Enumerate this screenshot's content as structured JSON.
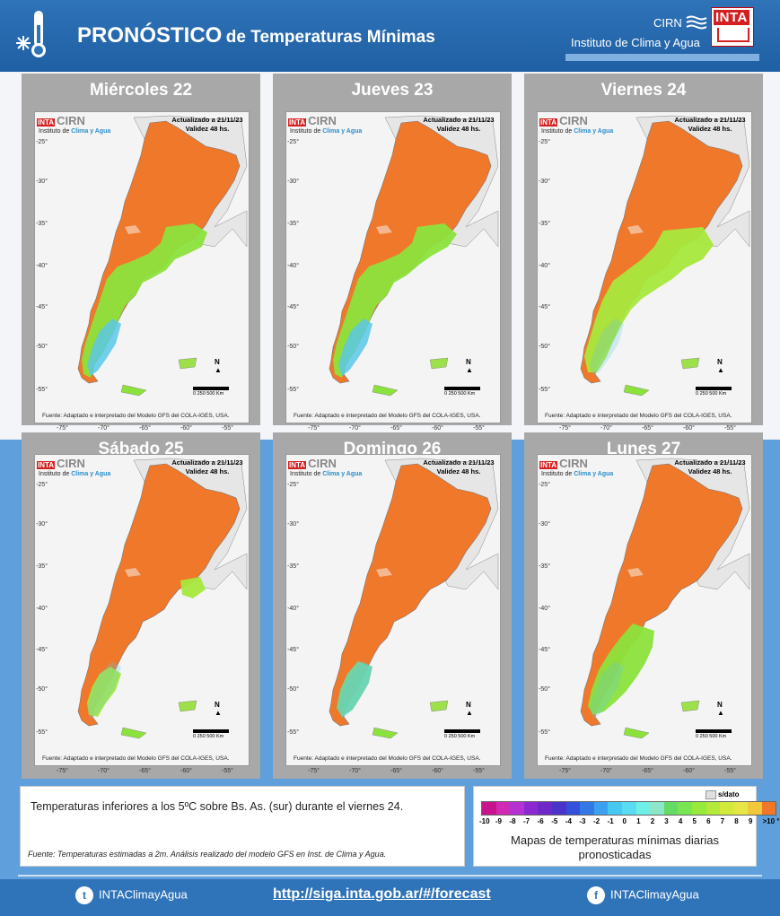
{
  "header": {
    "title_bold": "PRONÓSTICO",
    "title_rest": "de Temperaturas  Mínimas",
    "cirn": "CIRN",
    "institute": "Instituto de Clima y Agua",
    "logo_text": "INTA",
    "icon": "thermometer-snowflake-icon"
  },
  "map_common": {
    "logo_inta": "INTA",
    "logo_cirn": "CIRN",
    "inst_pre": "Instituto de",
    "inst_hl": "Clima y Agua",
    "updated": "Actualizado a 21/11/23",
    "validity": "Validez 48 hs.",
    "source": "Fuente: Adaptado e interpretado del Modelo GFS del COLA-IGES, USA.",
    "north": "N",
    "scale": "0      250      500 Km",
    "lat_labels": [
      "-25°",
      "-30°",
      "-35°",
      "-40°",
      "-45°",
      "-50°",
      "-55°"
    ],
    "lon_labels": [
      "-75°",
      "-70°",
      "-65°",
      "-60°",
      "-55°"
    ]
  },
  "panels": [
    {
      "day": "Miércoles 22"
    },
    {
      "day": "Jueves 23"
    },
    {
      "day": "Viernes 24"
    },
    {
      "day": "Sábado 25"
    },
    {
      "day": "Domingo 26"
    },
    {
      "day": "Lunes 27"
    }
  ],
  "note": {
    "text": "Temperaturas inferiores a los 5ºC sobre Bs. As. (sur) durante el viernes 24.",
    "source": "Fuente: Temperaturas estimadas a 2m. Análisis realizado del modelo GFS en Inst. de Clima y Agua."
  },
  "legend": {
    "no_data": "s/dato",
    "labels": [
      "-10",
      "-9",
      "-8",
      "-7",
      "-6",
      "-5",
      "-4",
      "-3",
      "-2",
      "-1",
      "0",
      "1",
      "2",
      "3",
      "4",
      "5",
      "6",
      "7",
      "8",
      "9",
      ">10 °C"
    ],
    "colors": [
      "#c8148c",
      "#d02ab4",
      "#b432d2",
      "#8c28d2",
      "#6e28c8",
      "#4b32c8",
      "#3250dc",
      "#3278e6",
      "#3ca0f0",
      "#46c8f0",
      "#5adcf0",
      "#6ef0e6",
      "#8ce6c8",
      "#64dc64",
      "#78e650",
      "#96ea3c",
      "#b4ea3c",
      "#d2ea3c",
      "#e6e646",
      "#f0c83c",
      "#f07828"
    ],
    "caption": "Mapas de temperaturas mínimas diarias pronosticadas"
  },
  "footer": {
    "twitter": "INTAClimayAgua",
    "link": "http://siga.inta.gob.ar/#/forecast",
    "facebook": "INTAClimayAgua"
  }
}
